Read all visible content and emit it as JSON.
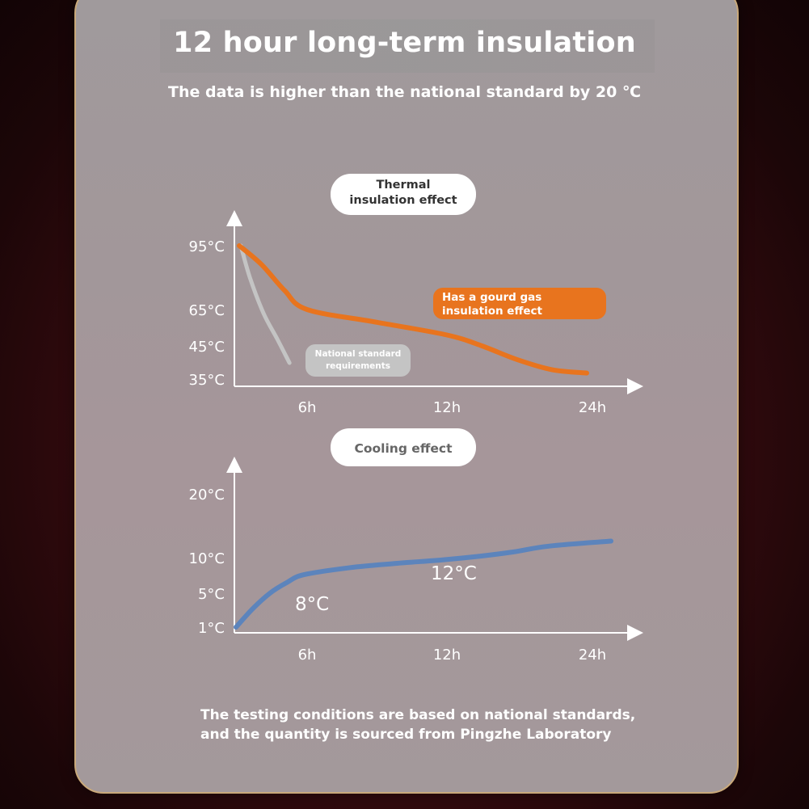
{
  "header": {
    "title": "12 hour long-term insulation",
    "subtitle": "The data is higher than the national standard by 20 ℃"
  },
  "footnote": {
    "line1": "The testing conditions are based on national standards,",
    "line2": "and the quantity is sourced from Pingzhe Laboratory"
  },
  "colors": {
    "orange_series": "#e8741e",
    "gray_series": "#c4c4c4",
    "blue_series": "#5c84bc",
    "card_border": "#c9a97a"
  },
  "chart_data": [
    {
      "type": "line",
      "title": "Thermal insulation effect",
      "title_lines": [
        "Thermal",
        "insulation effect"
      ],
      "x_ticks": [
        "6h",
        "12h",
        "24h"
      ],
      "y_ticks": [
        "95°C",
        "65°C",
        "45°C",
        "35°C"
      ],
      "series": [
        {
          "name": "Has a gourd gas insulation effect",
          "label_lines": [
            "Has a gourd gas",
            "insulation effect"
          ],
          "color": "#e8741e",
          "points": [
            [
              0,
              95
            ],
            [
              2,
              86
            ],
            [
              4,
              74
            ],
            [
              6,
              65
            ],
            [
              9,
              58
            ],
            [
              12,
              51
            ],
            [
              15,
              45
            ],
            [
              18,
              41
            ],
            [
              21,
              38
            ],
            [
              24,
              37
            ]
          ]
        },
        {
          "name": "National standard requirements",
          "label_lines": [
            "National standard",
            "requirements"
          ],
          "color": "#c4c4c4",
          "points": [
            [
              0,
              95
            ],
            [
              0.8,
              80
            ],
            [
              2,
              63
            ],
            [
              3.2,
              49
            ],
            [
              4.3,
              40
            ]
          ]
        }
      ]
    },
    {
      "type": "line",
      "title": "Cooling effect",
      "x_ticks": [
        "6h",
        "12h",
        "24h"
      ],
      "y_ticks": [
        "20°C",
        "10°C",
        "5°C",
        "1°C"
      ],
      "annotations": [
        "8°C",
        "12°C"
      ],
      "series": [
        {
          "name": "",
          "color": "#5c84bc",
          "points": [
            [
              0,
              1
            ],
            [
              1.5,
              3.2
            ],
            [
              3,
              5
            ],
            [
              4.5,
              6.5
            ],
            [
              6,
              7.6
            ],
            [
              8,
              8.6
            ],
            [
              10,
              9.2
            ],
            [
              12,
              9.7
            ],
            [
              15,
              10.2
            ],
            [
              18,
              10.9
            ],
            [
              21,
              11.8
            ],
            [
              24,
              12.6
            ]
          ]
        }
      ]
    }
  ]
}
